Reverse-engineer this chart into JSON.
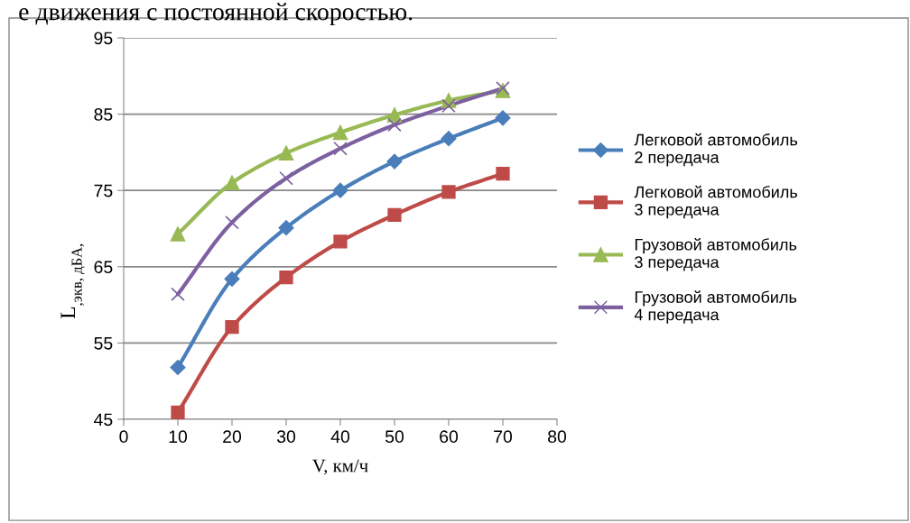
{
  "chart_data": {
    "type": "line",
    "xlabel": "V, км/ч",
    "ylabel": "L$_{,экв, дБА,}$",
    "annotations": [
      "е движения с постоянной скоростью."
    ],
    "x": [
      10,
      20,
      30,
      40,
      50,
      60,
      70
    ],
    "series": [
      {
        "name": "Легковой автомобиль 2 передача",
        "color": "#4a7ebb",
        "marker": "diamond",
        "values": [
          51.8,
          63.4,
          70.1,
          75.0,
          78.8,
          81.8,
          84.5
        ]
      },
      {
        "name": "Легковой автомобиль 3 передача",
        "color": "#be4b48",
        "marker": "square",
        "values": [
          45.9,
          57.1,
          63.6,
          68.3,
          71.8,
          74.8,
          77.2
        ]
      },
      {
        "name": "Грузовой автомобиль 3 передача",
        "color": "#98b954",
        "marker": "triangle",
        "values": [
          69.3,
          76.0,
          79.9,
          82.6,
          84.9,
          86.8,
          88.1
        ]
      },
      {
        "name": "Грузовой автомобиль 4 передача",
        "color": "#7d60a0",
        "marker": "cross",
        "values": [
          61.4,
          70.8,
          76.6,
          80.5,
          83.6,
          86.1,
          88.4
        ]
      }
    ],
    "xlim": [
      0,
      80
    ],
    "xticks": [
      0,
      10,
      20,
      30,
      40,
      50,
      60,
      70,
      80
    ],
    "ylim": [
      45,
      95
    ],
    "yticks": [
      45,
      55,
      65,
      75,
      85,
      95
    ],
    "grid": "y",
    "legend": "right",
    "line_style": "solid"
  }
}
